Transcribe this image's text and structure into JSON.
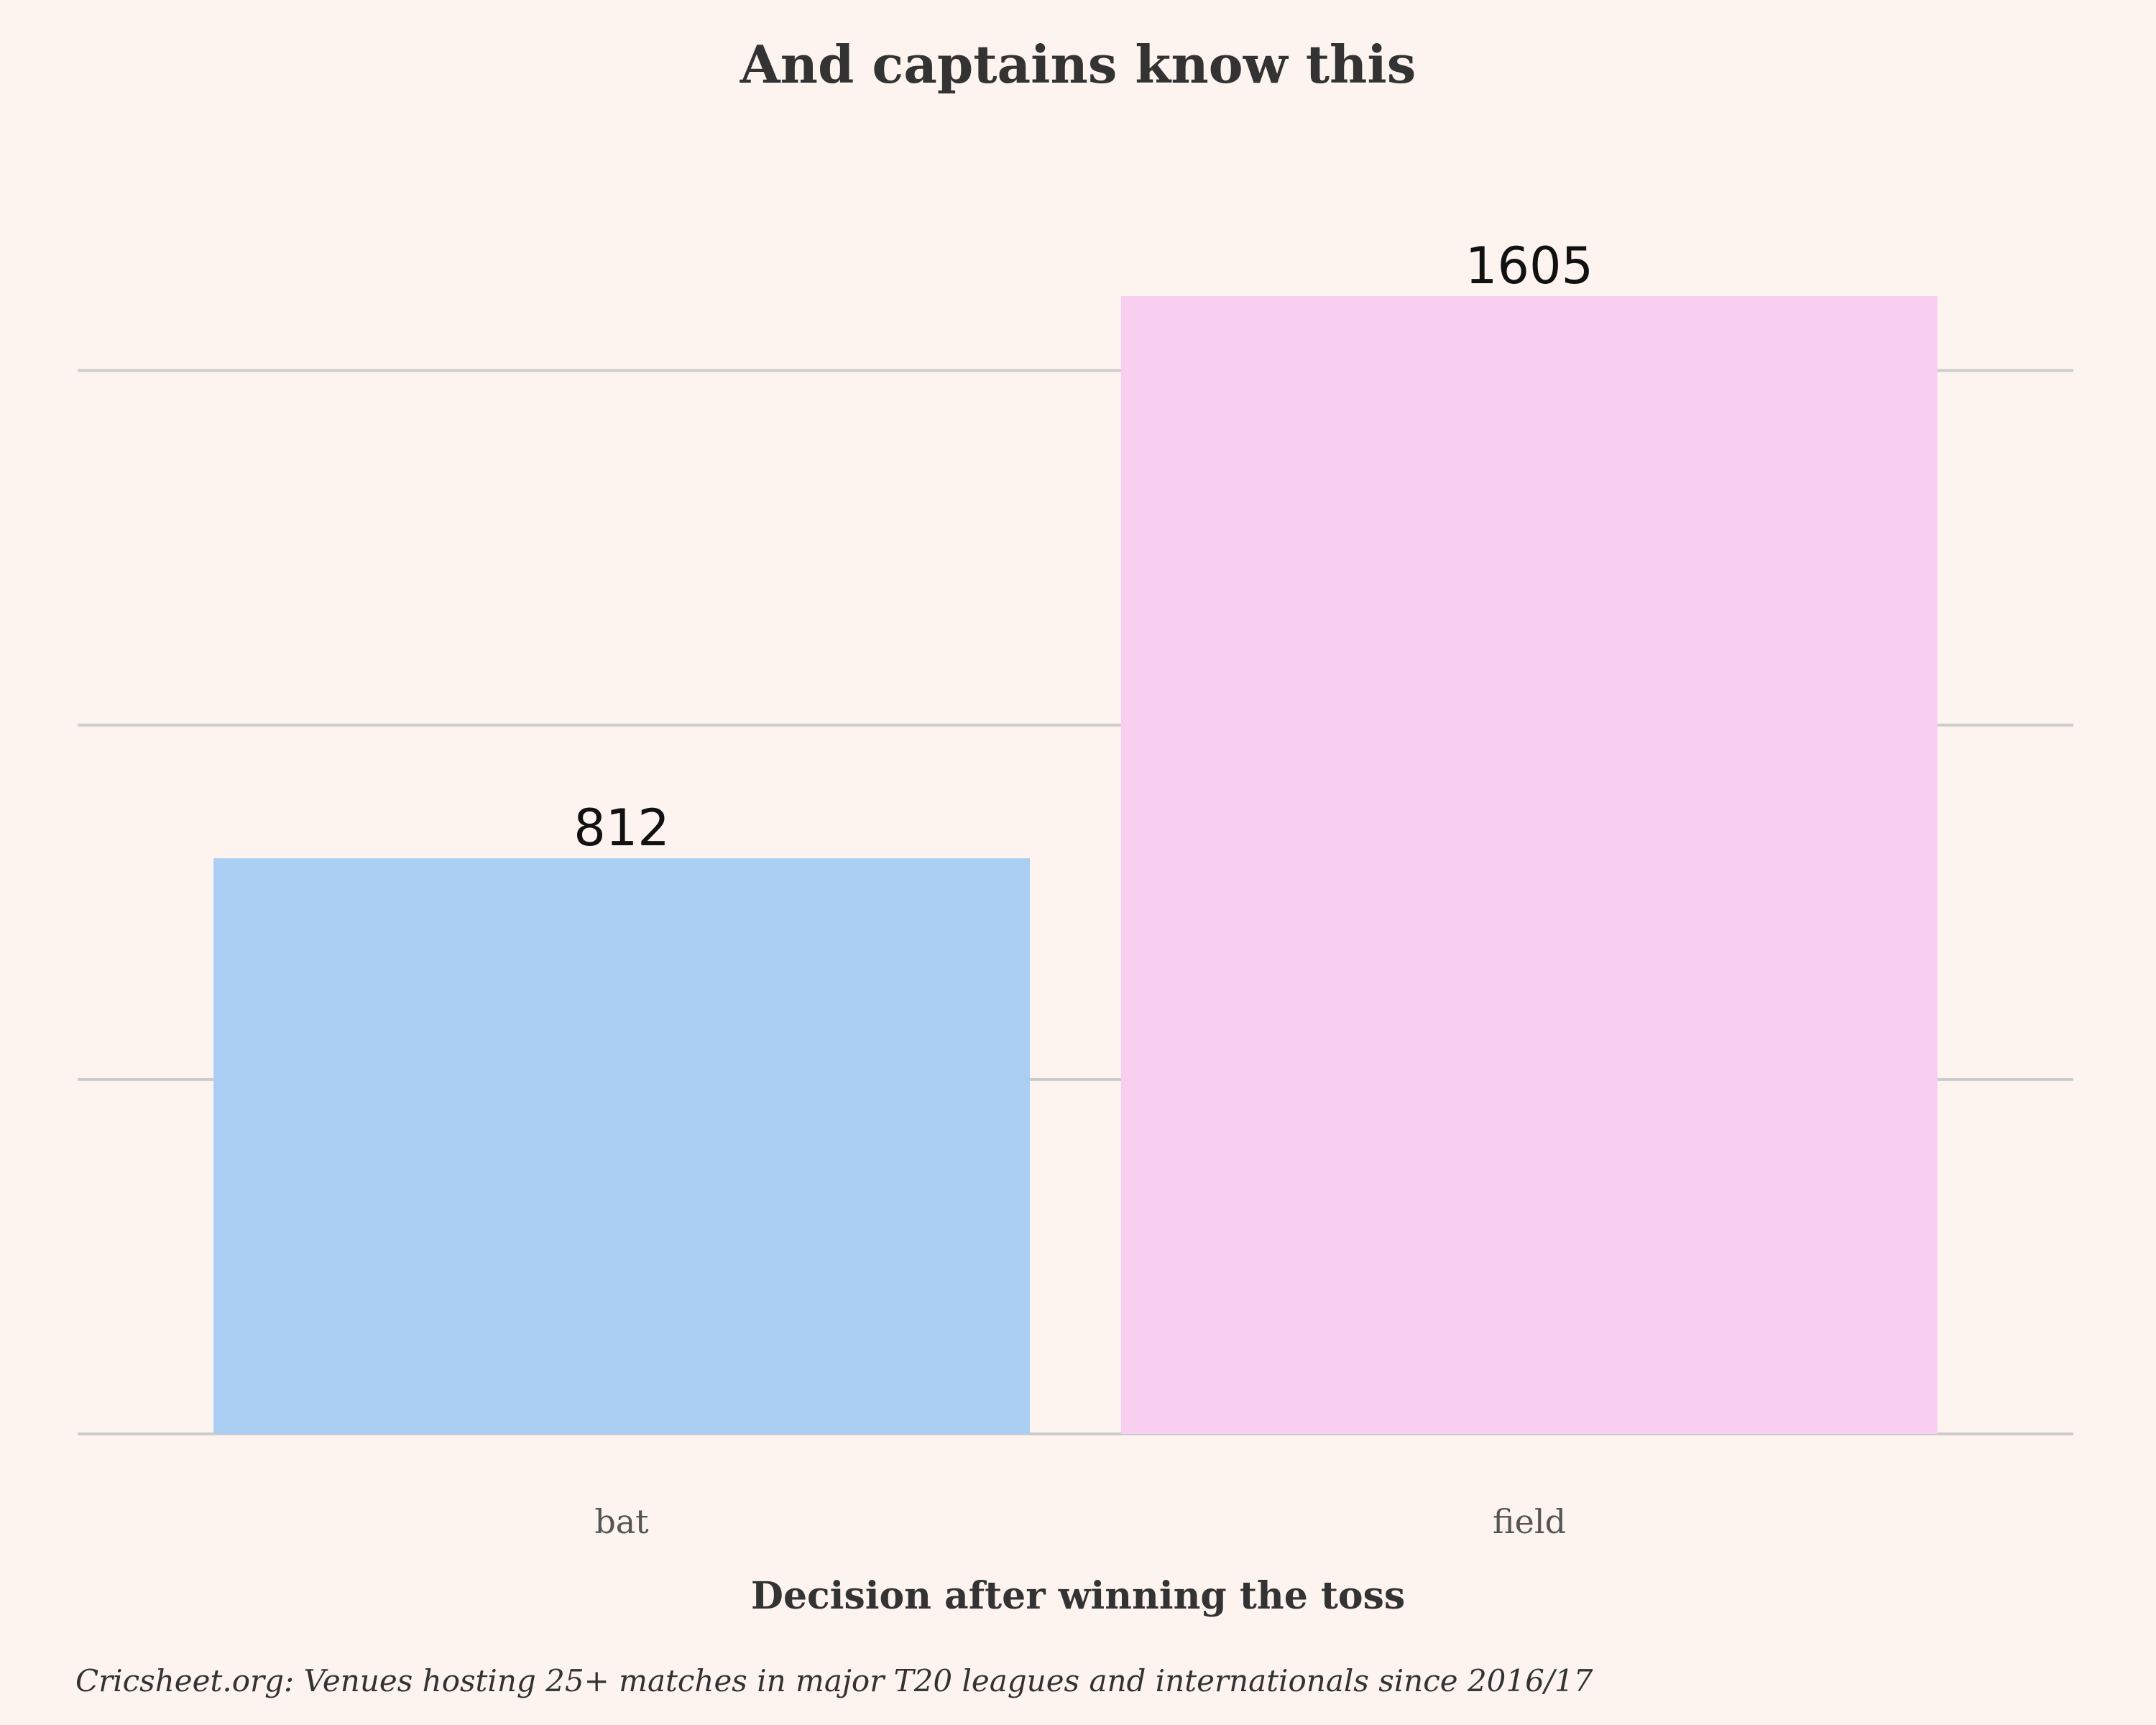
{
  "chart_data": {
    "type": "bar",
    "title": "And captains know this",
    "xlabel": "Decision after winning the toss",
    "ylabel": "",
    "categories": [
      "bat",
      "field"
    ],
    "values": [
      812,
      1605
    ],
    "value_labels": [
      "812",
      "1605"
    ],
    "colors": [
      "#abcff2",
      "#f9cff1"
    ],
    "ylim": [
      0,
      1605
    ],
    "gridline_values": [
      0,
      500,
      1000,
      1500
    ],
    "y_tick_labels_shown": false,
    "grid": true,
    "caption": "Cricsheet.org: Venues hosting 25+ matches in major T20 leagues and internationals since 2016/17"
  }
}
